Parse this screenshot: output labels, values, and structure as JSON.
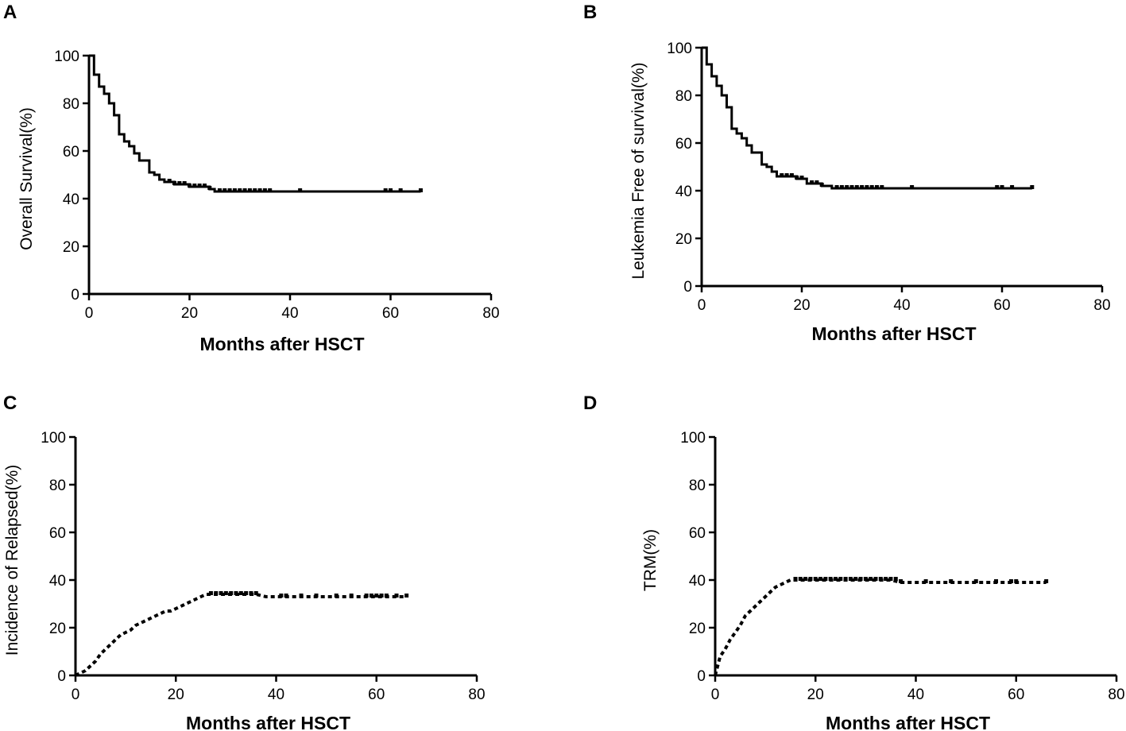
{
  "panels": [
    "A",
    "B",
    "C",
    "D"
  ],
  "chart_data": [
    {
      "panel": "A",
      "type": "line",
      "style": "step-down",
      "xlabel": "Months after HSCT",
      "ylabel": "Overall  Survival(%)",
      "xlim": [
        0,
        80
      ],
      "ylim": [
        0,
        100
      ],
      "xticks": [
        0,
        20,
        40,
        60,
        80
      ],
      "yticks": [
        0,
        20,
        40,
        60,
        80,
        100
      ],
      "points": [
        [
          0,
          100
        ],
        [
          1,
          100
        ],
        [
          1,
          92
        ],
        [
          2,
          92
        ],
        [
          2,
          87
        ],
        [
          3,
          87
        ],
        [
          3,
          84
        ],
        [
          4,
          84
        ],
        [
          4,
          80
        ],
        [
          5,
          80
        ],
        [
          5,
          75
        ],
        [
          6,
          75
        ],
        [
          6,
          67
        ],
        [
          7,
          67
        ],
        [
          7,
          64
        ],
        [
          8,
          64
        ],
        [
          8,
          62
        ],
        [
          9,
          62
        ],
        [
          9,
          59
        ],
        [
          10,
          59
        ],
        [
          10,
          56
        ],
        [
          12,
          56
        ],
        [
          12,
          51
        ],
        [
          13,
          51
        ],
        [
          13,
          50
        ],
        [
          14,
          50
        ],
        [
          14,
          48
        ],
        [
          15,
          48
        ],
        [
          15,
          47
        ],
        [
          17,
          47
        ],
        [
          17,
          46
        ],
        [
          20,
          46
        ],
        [
          20,
          45
        ],
        [
          24,
          45
        ],
        [
          24,
          44
        ],
        [
          25,
          44
        ],
        [
          25,
          43
        ],
        [
          66,
          43
        ]
      ],
      "censor_x": [
        16,
        17,
        18,
        19,
        20,
        21,
        22,
        23,
        24,
        26,
        27,
        28,
        29,
        30,
        31,
        32,
        33,
        34,
        35,
        36,
        42,
        59,
        60,
        62,
        66
      ]
    },
    {
      "panel": "B",
      "type": "line",
      "style": "step-down",
      "xlabel": "Months after HSCT",
      "ylabel": "Leukemia Free of survival(%)",
      "xlim": [
        0,
        80
      ],
      "ylim": [
        0,
        100
      ],
      "xticks": [
        0,
        20,
        40,
        60,
        80
      ],
      "yticks": [
        0,
        20,
        40,
        60,
        80,
        100
      ],
      "points": [
        [
          0,
          100
        ],
        [
          1,
          100
        ],
        [
          1,
          93
        ],
        [
          2,
          93
        ],
        [
          2,
          88
        ],
        [
          3,
          88
        ],
        [
          3,
          84
        ],
        [
          4,
          84
        ],
        [
          4,
          80
        ],
        [
          5,
          80
        ],
        [
          5,
          75
        ],
        [
          6,
          75
        ],
        [
          6,
          66
        ],
        [
          7,
          66
        ],
        [
          7,
          64
        ],
        [
          8,
          64
        ],
        [
          8,
          62
        ],
        [
          9,
          62
        ],
        [
          9,
          59
        ],
        [
          10,
          59
        ],
        [
          10,
          56
        ],
        [
          12,
          56
        ],
        [
          12,
          51
        ],
        [
          13,
          51
        ],
        [
          13,
          50
        ],
        [
          14,
          50
        ],
        [
          14,
          48
        ],
        [
          15,
          48
        ],
        [
          15,
          46
        ],
        [
          19,
          46
        ],
        [
          19,
          45
        ],
        [
          21,
          45
        ],
        [
          21,
          43
        ],
        [
          24,
          43
        ],
        [
          24,
          42
        ],
        [
          26,
          42
        ],
        [
          26,
          41
        ],
        [
          66,
          41
        ]
      ],
      "censor_x": [
        16,
        17,
        18,
        19,
        20,
        22,
        23,
        24,
        27,
        28,
        29,
        30,
        31,
        32,
        33,
        34,
        35,
        36,
        42,
        59,
        60,
        62,
        66
      ]
    },
    {
      "panel": "C",
      "type": "line",
      "style": "dotted-step-up",
      "xlabel": "Months after HSCT",
      "ylabel": "Incidence of Relapsed(%)",
      "xlim": [
        0,
        80
      ],
      "ylim": [
        0,
        100
      ],
      "xticks": [
        0,
        20,
        40,
        60,
        80
      ],
      "yticks": [
        0,
        20,
        40,
        60,
        80,
        100
      ],
      "points": [
        [
          0,
          0
        ],
        [
          1,
          1
        ],
        [
          2,
          2
        ],
        [
          3,
          4
        ],
        [
          4,
          6
        ],
        [
          5,
          9
        ],
        [
          6,
          11
        ],
        [
          7,
          13
        ],
        [
          8,
          15
        ],
        [
          9,
          17
        ],
        [
          10,
          18
        ],
        [
          11,
          19
        ],
        [
          12,
          21
        ],
        [
          13,
          22
        ],
        [
          14,
          23
        ],
        [
          15,
          24
        ],
        [
          16,
          25
        ],
        [
          17,
          26
        ],
        [
          18,
          27
        ],
        [
          19,
          27
        ],
        [
          20,
          28
        ],
        [
          21,
          29
        ],
        [
          22,
          30
        ],
        [
          23,
          31
        ],
        [
          24,
          32
        ],
        [
          25,
          33
        ],
        [
          26,
          34
        ],
        [
          28,
          34
        ],
        [
          30,
          34
        ],
        [
          32,
          34
        ],
        [
          34,
          34
        ],
        [
          36,
          34
        ],
        [
          38,
          33
        ],
        [
          66,
          33
        ]
      ],
      "censor_x": [
        27,
        28,
        29,
        30,
        31,
        32,
        33,
        34,
        35,
        36,
        41,
        42,
        45,
        48,
        52,
        55,
        58,
        59,
        60,
        61,
        62,
        64,
        66
      ]
    },
    {
      "panel": "D",
      "type": "line",
      "style": "dotted-step-up",
      "xlabel": "Months after HSCT",
      "ylabel": "TRM(%)",
      "xlim": [
        0,
        80
      ],
      "ylim": [
        0,
        100
      ],
      "xticks": [
        0,
        20,
        40,
        60,
        80
      ],
      "yticks": [
        0,
        20,
        40,
        60,
        80,
        100
      ],
      "points": [
        [
          0,
          0
        ],
        [
          0.5,
          4
        ],
        [
          1,
          8
        ],
        [
          2,
          11
        ],
        [
          3,
          15
        ],
        [
          4,
          18
        ],
        [
          5,
          21
        ],
        [
          6,
          25
        ],
        [
          7,
          27
        ],
        [
          8,
          29
        ],
        [
          9,
          31
        ],
        [
          10,
          33
        ],
        [
          11,
          35
        ],
        [
          12,
          37
        ],
        [
          13,
          38
        ],
        [
          14,
          39
        ],
        [
          15,
          40
        ],
        [
          17,
          40
        ],
        [
          20,
          40
        ],
        [
          25,
          40
        ],
        [
          30,
          40
        ],
        [
          35,
          40
        ],
        [
          37,
          39
        ],
        [
          66,
          39
        ]
      ],
      "censor_x": [
        16,
        17,
        18,
        19,
        20,
        21,
        22,
        23,
        24,
        25,
        26,
        27,
        28,
        29,
        30,
        31,
        32,
        33,
        34,
        35,
        36,
        37,
        42,
        47,
        52,
        56,
        59,
        60,
        66
      ]
    }
  ]
}
